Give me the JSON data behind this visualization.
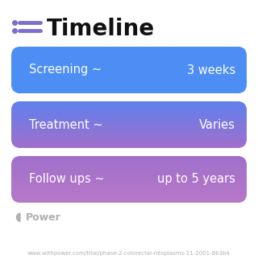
{
  "title": "Timeline",
  "title_fontsize": 20,
  "title_fontweight": "bold",
  "title_color": "#111111",
  "icon_color": "#7c6fcd",
  "background_color": "#ffffff",
  "rows": [
    {
      "label": "Screening ~",
      "value": "3 weeks",
      "color_top": "#4d8ef5",
      "color_bottom": "#4d8ef5"
    },
    {
      "label": "Treatment ~",
      "value": "Varies",
      "color_top": "#6080ee",
      "color_bottom": "#a070cc"
    },
    {
      "label": "Follow ups ~",
      "value": "up to 5 years",
      "color_top": "#a070cc",
      "color_bottom": "#b878c8"
    }
  ],
  "row_text_color": "#ffffff",
  "row_label_fontsize": 10.5,
  "row_value_fontsize": 10.5,
  "watermark_text": "Power",
  "watermark_color": "#b0b0b0",
  "watermark_fontsize": 9,
  "url_text": "www.withpower.com/trial/phase-2-colorectal-neoplasms-11-2001-8b3b4",
  "url_color": "#b0b0b0",
  "url_fontsize": 5.0
}
